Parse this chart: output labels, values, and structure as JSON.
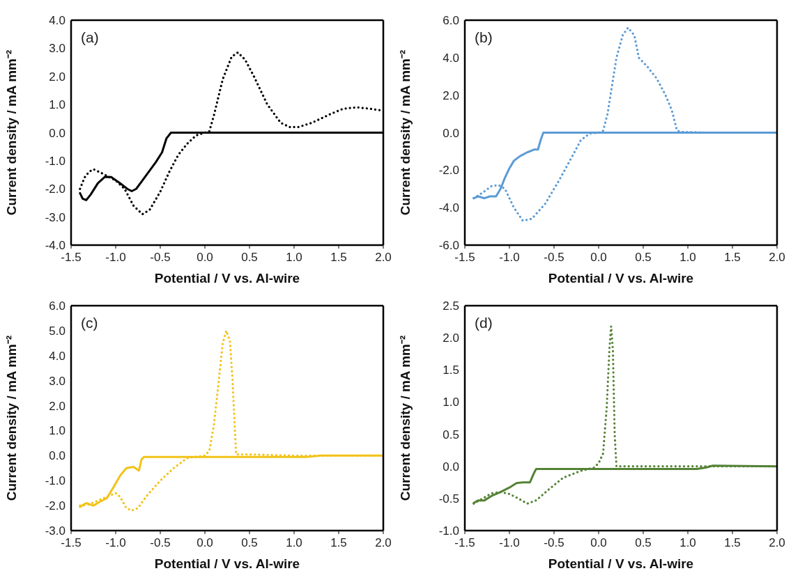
{
  "chart_data": [
    {
      "type": "line",
      "annotations": [
        "(a)"
      ],
      "xlabel": "Potential / V vs. Al-wire",
      "ylabel": "Current density / mA mm⁻²",
      "xlim": [
        -1.5,
        2.0
      ],
      "xticks": [
        {
          "value": -1.5,
          "label": "-1.5"
        },
        {
          "value": -1.0,
          "label": "-1.0"
        },
        {
          "value": -0.5,
          "label": "-0.5"
        },
        {
          "value": 0,
          "label": "0.0"
        },
        {
          "value": 0.5,
          "label": "0.5"
        },
        {
          "value": 1.0,
          "label": "1.0"
        },
        {
          "value": 1.5,
          "label": "1.5"
        },
        {
          "value": 2.0,
          "label": "2.0"
        }
      ],
      "ylim": [
        -4.0,
        4.0
      ],
      "yticks": [
        {
          "value": -4,
          "label": "-4.0"
        },
        {
          "value": -3,
          "label": "-3.0"
        },
        {
          "value": -2,
          "label": "-2.0"
        },
        {
          "value": -1,
          "label": "-1.0"
        },
        {
          "value": 0,
          "label": "0.0"
        },
        {
          "value": 1,
          "label": "1.0"
        },
        {
          "value": 2,
          "label": "2.0"
        },
        {
          "value": 3,
          "label": "3.0"
        },
        {
          "value": 4,
          "label": "4.0"
        }
      ],
      "series": [
        {
          "color": "#000000",
          "line_style": "solid",
          "x": [
            -1.4,
            -1.37,
            -1.33,
            -1.28,
            -1.2,
            -1.12,
            -1.05,
            -0.95,
            -0.87,
            -0.82,
            -0.77,
            -0.7,
            -0.62,
            -0.55,
            -0.48,
            -0.43,
            -0.38,
            0,
            1.0,
            2.0
          ],
          "values": [
            -2.15,
            -2.35,
            -2.4,
            -2.2,
            -1.8,
            -1.57,
            -1.58,
            -1.8,
            -2.0,
            -2.08,
            -2.0,
            -1.7,
            -1.35,
            -1.05,
            -0.7,
            -0.2,
            0,
            0,
            0,
            0
          ]
        },
        {
          "color": "#000000",
          "line_style": "dotted",
          "x": [
            -1.4,
            -1.35,
            -1.3,
            -1.25,
            -1.15,
            -1.0,
            -0.9,
            -0.8,
            -0.7,
            -0.62,
            -0.5,
            -0.4,
            -0.3,
            -0.2,
            -0.1,
            0,
            0.05,
            0.1,
            0.2,
            0.3,
            0.37,
            0.45,
            0.55,
            0.7,
            0.85,
            0.95,
            1.05,
            1.2,
            1.4,
            1.55,
            1.7,
            1.85,
            2.0
          ],
          "values": [
            -2.0,
            -1.6,
            -1.4,
            -1.3,
            -1.45,
            -1.7,
            -2.0,
            -2.6,
            -2.9,
            -2.75,
            -2.1,
            -1.4,
            -0.8,
            -0.4,
            -0.1,
            0.0,
            0.05,
            0.6,
            1.9,
            2.7,
            2.85,
            2.6,
            2.0,
            1.0,
            0.35,
            0.2,
            0.2,
            0.35,
            0.65,
            0.85,
            0.9,
            0.85,
            0.78
          ]
        }
      ]
    },
    {
      "type": "line",
      "annotations": [
        "(b)"
      ],
      "xlabel": "Potential / V vs. Al-wire",
      "ylabel": "Current density / mA mm⁻²",
      "xlim": [
        -1.5,
        2.0
      ],
      "xticks": [
        {
          "value": -1.5,
          "label": "-1.5"
        },
        {
          "value": -1.0,
          "label": "-1.0"
        },
        {
          "value": -0.5,
          "label": "-0.5"
        },
        {
          "value": 0,
          "label": "0.0"
        },
        {
          "value": 0.5,
          "label": "0.5"
        },
        {
          "value": 1.0,
          "label": "1.0"
        },
        {
          "value": 1.5,
          "label": "1.5"
        },
        {
          "value": 2.0,
          "label": "2.0"
        }
      ],
      "ylim": [
        -6.0,
        6.0
      ],
      "yticks": [
        {
          "value": -6,
          "label": "-6.0"
        },
        {
          "value": -4,
          "label": "-4.0"
        },
        {
          "value": -2,
          "label": "-2.0"
        },
        {
          "value": 0,
          "label": "0.0"
        },
        {
          "value": 2,
          "label": "2.0"
        },
        {
          "value": 4,
          "label": "4.0"
        },
        {
          "value": 6,
          "label": "6.0"
        }
      ],
      "series": [
        {
          "color": "#5b9bd5",
          "line_style": "solid",
          "x": [
            -1.4,
            -1.35,
            -1.28,
            -1.22,
            -1.15,
            -1.1,
            -1.05,
            -1.0,
            -0.95,
            -0.88,
            -0.8,
            -0.72,
            -0.68,
            -0.65,
            -0.62,
            0,
            1.0,
            2.0
          ],
          "values": [
            -3.5,
            -3.4,
            -3.5,
            -3.4,
            -3.4,
            -3.0,
            -2.4,
            -1.9,
            -1.5,
            -1.25,
            -1.05,
            -0.9,
            -0.9,
            -0.4,
            0,
            0,
            0,
            0
          ]
        },
        {
          "color": "#5b9bd5",
          "line_style": "dotted",
          "x": [
            -1.4,
            -1.3,
            -1.2,
            -1.12,
            -1.05,
            -0.95,
            -0.85,
            -0.75,
            -0.6,
            -0.45,
            -0.3,
            -0.2,
            -0.1,
            0,
            0.05,
            0.1,
            0.15,
            0.2,
            0.27,
            0.33,
            0.4,
            0.45,
            0.55,
            0.65,
            0.75,
            0.82,
            0.88,
            0.92,
            1.2,
            2.0
          ],
          "values": [
            -3.5,
            -3.2,
            -2.85,
            -2.8,
            -3.0,
            -4.0,
            -4.7,
            -4.6,
            -3.8,
            -2.6,
            -1.3,
            -0.4,
            -0.05,
            0,
            0.1,
            1.0,
            2.5,
            4.0,
            5.2,
            5.6,
            5.2,
            4.0,
            3.5,
            2.9,
            2.0,
            1.2,
            0.1,
            0.05,
            0,
            0
          ]
        }
      ]
    },
    {
      "type": "line",
      "annotations": [
        "(c)"
      ],
      "xlabel": "Potential / V vs. Al-wire",
      "ylabel": "Current density / mA mm⁻²",
      "xlim": [
        -1.5,
        2.0
      ],
      "xticks": [
        {
          "value": -1.5,
          "label": "-1.5"
        },
        {
          "value": -1.0,
          "label": "-1.0"
        },
        {
          "value": -0.5,
          "label": "-0.5"
        },
        {
          "value": 0,
          "label": "0.0"
        },
        {
          "value": 0.5,
          "label": "0.5"
        },
        {
          "value": 1.0,
          "label": "1.0"
        },
        {
          "value": 1.5,
          "label": "1.5"
        },
        {
          "value": 2.0,
          "label": "2.0"
        }
      ],
      "ylim": [
        -3.0,
        6.0
      ],
      "yticks": [
        {
          "value": -3,
          "label": "-3.0"
        },
        {
          "value": -2,
          "label": "-2.0"
        },
        {
          "value": -1,
          "label": "-1.0"
        },
        {
          "value": 0,
          "label": "0.0"
        },
        {
          "value": 1,
          "label": "1.0"
        },
        {
          "value": 2,
          "label": "2.0"
        },
        {
          "value": 3,
          "label": "3.0"
        },
        {
          "value": 4,
          "label": "4.0"
        },
        {
          "value": 5,
          "label": "5.0"
        },
        {
          "value": 6,
          "label": "6.0"
        }
      ],
      "series": [
        {
          "color": "#f2c318",
          "line_style": "solid",
          "x": [
            -1.4,
            -1.33,
            -1.25,
            -1.18,
            -1.1,
            -1.03,
            -0.95,
            -0.88,
            -0.8,
            -0.74,
            -0.71,
            -0.68,
            0,
            1.15,
            1.3,
            2.0
          ],
          "values": [
            -2.05,
            -1.9,
            -2.0,
            -1.85,
            -1.7,
            -1.3,
            -0.8,
            -0.5,
            -0.45,
            -0.6,
            -0.15,
            -0.05,
            -0.05,
            -0.05,
            0.0,
            0.0
          ]
        },
        {
          "color": "#f2c318",
          "line_style": "dotted",
          "x": [
            -1.4,
            -1.3,
            -1.2,
            -1.1,
            -1.0,
            -0.95,
            -0.88,
            -0.82,
            -0.75,
            -0.65,
            -0.5,
            -0.35,
            -0.2,
            0,
            0.05,
            0.1,
            0.15,
            0.2,
            0.24,
            0.28,
            0.31,
            0.33,
            0.35,
            0.5,
            1.0,
            2.0
          ],
          "values": [
            -2.0,
            -1.95,
            -1.8,
            -1.65,
            -1.5,
            -1.65,
            -2.1,
            -2.2,
            -2.1,
            -1.6,
            -1.0,
            -0.5,
            -0.1,
            0.0,
            0.2,
            1.2,
            2.8,
            4.5,
            5.0,
            4.6,
            3.0,
            1.5,
            0.05,
            0.05,
            0,
            0
          ]
        }
      ]
    },
    {
      "type": "line",
      "annotations": [
        "(d)"
      ],
      "xlabel": "Potential / V vs. Al-wire",
      "ylabel": "Current density / mA mm⁻²",
      "xlim": [
        -1.5,
        2.0
      ],
      "xticks": [
        {
          "value": -1.5,
          "label": "-1.5"
        },
        {
          "value": -1.0,
          "label": "-1.0"
        },
        {
          "value": -0.5,
          "label": "-0.5"
        },
        {
          "value": 0,
          "label": "0.0"
        },
        {
          "value": 0.5,
          "label": "0.5"
        },
        {
          "value": 1.0,
          "label": "1.0"
        },
        {
          "value": 1.5,
          "label": "1.5"
        },
        {
          "value": 2.0,
          "label": "2.0"
        }
      ],
      "ylim": [
        -1.0,
        2.5
      ],
      "yticks": [
        {
          "value": -1,
          "label": "-1.0"
        },
        {
          "value": -0.5,
          "label": "-0.5"
        },
        {
          "value": 0,
          "label": "0.0"
        },
        {
          "value": 0.5,
          "label": "0.5"
        },
        {
          "value": 1,
          "label": "1.0"
        },
        {
          "value": 1.5,
          "label": "1.5"
        },
        {
          "value": 2,
          "label": "2.0"
        },
        {
          "value": 2.5,
          "label": "2.5"
        }
      ],
      "series": [
        {
          "color": "#548235",
          "line_style": "solid",
          "x": [
            -1.4,
            -1.35,
            -1.28,
            -1.2,
            -1.1,
            -1.0,
            -0.92,
            -0.85,
            -0.77,
            -0.73,
            -0.7,
            0,
            1.1,
            1.2,
            1.28,
            2.0
          ],
          "values": [
            -0.57,
            -0.53,
            -0.53,
            -0.46,
            -0.4,
            -0.33,
            -0.26,
            -0.25,
            -0.25,
            -0.12,
            -0.04,
            -0.04,
            -0.04,
            -0.02,
            0.01,
            0.0
          ]
        },
        {
          "color": "#548235",
          "line_style": "dotted",
          "x": [
            -1.4,
            -1.3,
            -1.2,
            -1.1,
            -1.0,
            -0.9,
            -0.8,
            -0.7,
            -0.55,
            -0.4,
            -0.2,
            -0.05,
            0.0,
            0.05,
            0.09,
            0.12,
            0.14,
            0.16,
            0.18,
            0.2,
            0.5,
            1.0,
            2.0
          ],
          "values": [
            -0.58,
            -0.5,
            -0.42,
            -0.4,
            -0.43,
            -0.5,
            -0.58,
            -0.53,
            -0.35,
            -0.18,
            -0.07,
            -0.02,
            0.05,
            0.2,
            0.9,
            1.8,
            2.18,
            1.8,
            0.5,
            0.0,
            0.0,
            0.0,
            0.0
          ]
        }
      ]
    }
  ]
}
